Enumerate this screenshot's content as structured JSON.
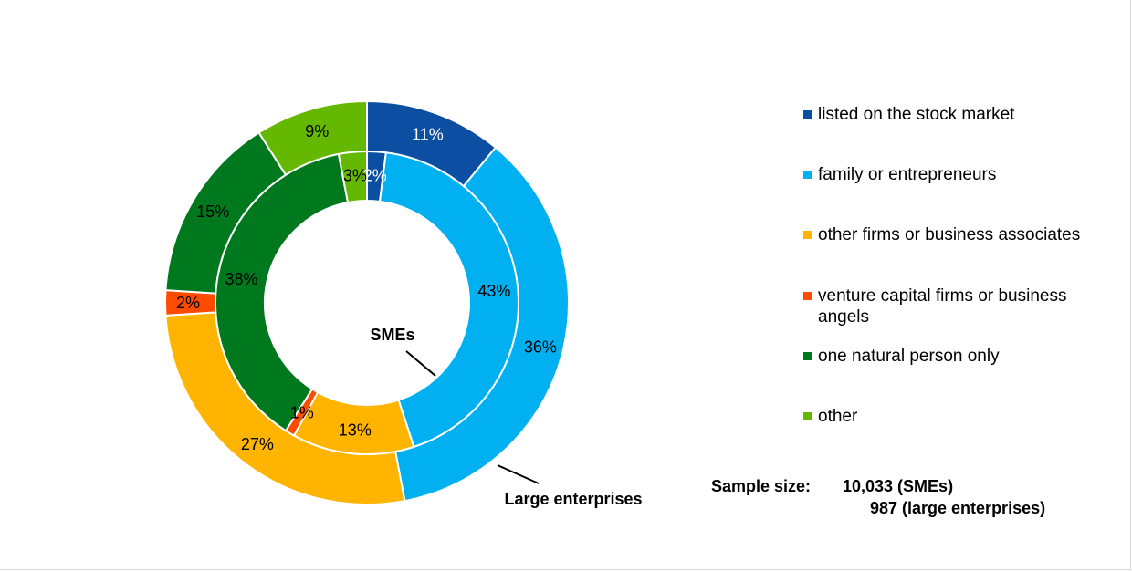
{
  "chart_data": {
    "type": "donut",
    "categories": [
      "listed on the stock market",
      "family or entrepreneurs",
      "other firms or business associates",
      "venture capital firms or business angels",
      "one natural person only",
      "other"
    ],
    "colors": [
      "#0b4ea2",
      "#00b0f0",
      "#ffb400",
      "#ff4b00",
      "#00781e",
      "#65b800"
    ],
    "series": [
      {
        "name": "SMEs",
        "ring": "inner",
        "values": [
          2,
          43,
          13,
          1,
          38,
          3
        ]
      },
      {
        "name": "Large enterprises",
        "ring": "outer",
        "values": [
          11,
          36,
          27,
          2,
          15,
          9
        ]
      }
    ],
    "value_suffix": "%",
    "legend_position": "right"
  },
  "sample": {
    "label": "Sample size:",
    "line1": "10,033 (SMEs)",
    "line2": "987 (large enterprises)"
  }
}
